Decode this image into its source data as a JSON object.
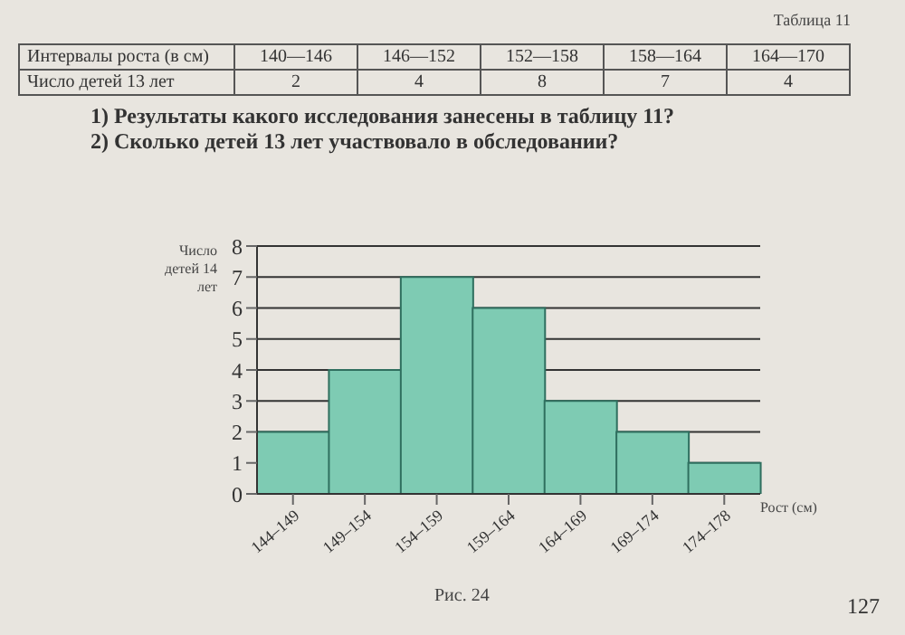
{
  "chart_data": [
    {
      "type": "heatmap",
      "title": "Таблица 11",
      "xlabel": "Интервалы роста (в см)",
      "categories": [
        "140—146",
        "146—152",
        "152—158",
        "158—164",
        "164—170"
      ],
      "y_categories": [
        "Число детей 13 лет"
      ],
      "cells": [
        [
          2,
          4,
          8,
          7,
          4
        ]
      ],
      "data_labels": true,
      "annotations": [
        "1) Результаты какого исследования занесены в таблицу 11?",
        "2) Сколько детей 13 лет участвовало в обследовании?"
      ]
    },
    {
      "type": "bar",
      "categories": [
        "144–149",
        "149–154",
        "154–159",
        "159–164",
        "164–169",
        "169–174",
        "174–178"
      ],
      "values": [
        2,
        4,
        7,
        6,
        3,
        2,
        1
      ],
      "color": "#7ecbb3",
      "ylim": [
        0,
        8
      ],
      "yticks": [
        0,
        1,
        2,
        3,
        4,
        5,
        6,
        7,
        8
      ],
      "grid": "y",
      "ylabel": "Число детей 14 лет",
      "xlabel": "Рост (см)",
      "annotations": [
        "Рис. 24",
        "127"
      ]
    }
  ]
}
